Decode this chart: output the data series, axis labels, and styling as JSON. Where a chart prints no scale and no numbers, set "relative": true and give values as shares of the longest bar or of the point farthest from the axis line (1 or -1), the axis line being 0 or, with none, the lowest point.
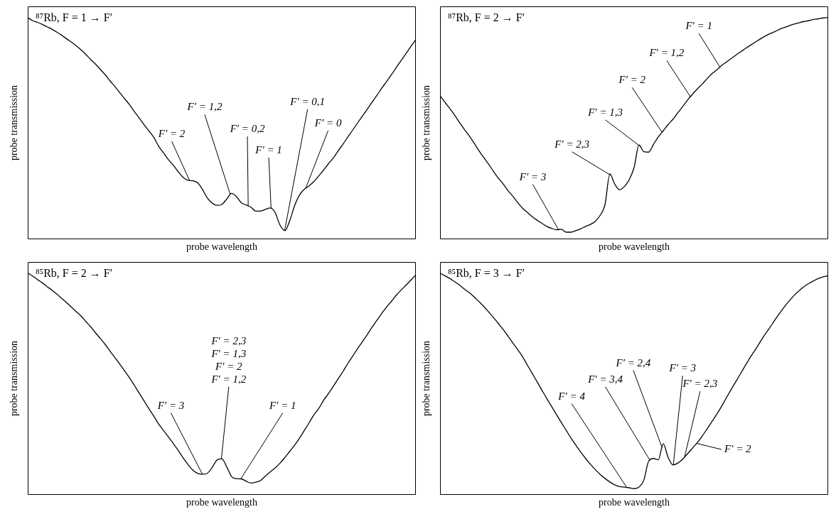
{
  "chart_data": [
    {
      "type": "line",
      "title": "⁸⁷Rb, F = 1 → F′",
      "xlabel": "probe wavelength",
      "ylabel": "probe transmission",
      "relative": true,
      "categories": [
        null,
        null,
        null,
        null,
        null,
        null,
        null,
        null,
        null,
        null,
        null,
        null,
        null,
        null,
        null,
        null,
        null,
        null,
        null,
        null,
        null,
        null,
        null,
        null,
        null,
        null,
        null,
        null,
        null,
        null,
        null,
        null,
        null,
        null,
        null,
        null,
        null,
        null,
        null,
        null,
        null,
        null,
        null,
        null,
        null,
        null,
        null,
        null,
        null,
        null,
        null,
        null,
        null,
        null,
        null,
        null,
        null,
        null,
        null,
        null,
        null,
        null,
        null,
        null,
        null,
        null,
        null,
        null,
        null,
        null,
        null,
        null,
        null,
        null,
        null,
        null,
        null,
        null,
        null,
        null,
        null
      ],
      "series": [
        {
          "color": "#000000",
          "values": [
            1.0,
            0.986,
            0.978,
            0.969,
            0.958,
            0.947,
            0.934,
            0.92,
            0.904,
            0.889,
            0.872,
            0.854,
            0.833,
            0.81,
            0.789,
            0.765,
            0.741,
            0.713,
            0.688,
            0.66,
            0.633,
            0.606,
            0.575,
            0.546,
            0.516,
            0.488,
            0.459,
            0.419,
            0.389,
            0.359,
            0.334,
            0.305,
            0.28,
            0.266,
            0.264,
            0.255,
            0.225,
            0.187,
            0.163,
            0.153,
            0.157,
            0.181,
            0.207,
            0.193,
            0.165,
            0.155,
            0.145,
            0.127,
            0.127,
            0.135,
            0.141,
            0.12,
            0.064,
            0.039,
            0.084,
            0.151,
            0.199,
            0.225,
            0.241,
            0.261,
            0.286,
            0.313,
            0.341,
            0.367,
            0.399,
            0.429,
            0.462,
            0.493,
            0.525,
            0.556,
            0.587,
            0.619,
            0.65,
            0.682,
            0.712,
            0.743,
            0.776,
            0.807,
            0.838,
            0.87,
            0.901
          ]
        }
      ],
      "annotations": [
        "F′ = 2",
        "F′ = 1,2",
        "F′ = 0,2",
        "F′ = 1",
        "F′ = 0,1",
        "F′ = 0"
      ]
    },
    {
      "type": "line",
      "title": "⁸⁷Rb, F = 2 → F′",
      "xlabel": "probe wavelength",
      "ylabel": "probe transmission",
      "relative": true,
      "categories": [
        null,
        null,
        null,
        null,
        null,
        null,
        null,
        null,
        null,
        null,
        null,
        null,
        null,
        null,
        null,
        null,
        null,
        null,
        null,
        null,
        null,
        null,
        null,
        null,
        null,
        null,
        null,
        null,
        null,
        null,
        null,
        null,
        null,
        null,
        null,
        null,
        null,
        null,
        null,
        null,
        null,
        null,
        null,
        null,
        null,
        null,
        null,
        null,
        null,
        null,
        null,
        null,
        null,
        null,
        null,
        null,
        null,
        null,
        null,
        null,
        null,
        null,
        null,
        null,
        null,
        null,
        null,
        null,
        null,
        null,
        null,
        null,
        null,
        null,
        null,
        null,
        null,
        null,
        null,
        null,
        null
      ],
      "series": [
        {
          "color": "#000000",
          "values": [
            0.647,
            0.618,
            0.59,
            0.56,
            0.527,
            0.496,
            0.467,
            0.434,
            0.4,
            0.369,
            0.339,
            0.306,
            0.276,
            0.25,
            0.22,
            0.194,
            0.166,
            0.14,
            0.121,
            0.102,
            0.086,
            0.072,
            0.058,
            0.049,
            0.043,
            0.045,
            0.032,
            0.032,
            0.039,
            0.047,
            0.058,
            0.067,
            0.081,
            0.108,
            0.156,
            0.295,
            0.249,
            0.223,
            0.238,
            0.269,
            0.324,
            0.425,
            0.395,
            0.393,
            0.428,
            0.462,
            0.489,
            0.517,
            0.541,
            0.57,
            0.598,
            0.627,
            0.653,
            0.677,
            0.699,
            0.723,
            0.746,
            0.763,
            0.783,
            0.799,
            0.815,
            0.831,
            0.846,
            0.861,
            0.875,
            0.889,
            0.903,
            0.916,
            0.927,
            0.936,
            0.947,
            0.955,
            0.963,
            0.97,
            0.976,
            0.982,
            0.986,
            0.991,
            0.994,
            0.998,
            1.0
          ]
        }
      ],
      "annotations": [
        "F′ = 3",
        "F′ = 2,3",
        "F′ = 1,3",
        "F′ = 2",
        "F′ = 1,2",
        "F′ = 1"
      ]
    },
    {
      "type": "line",
      "title": "⁸⁵Rb, F = 2 → F′",
      "xlabel": "probe wavelength",
      "ylabel": "probe transmission",
      "relative": true,
      "categories": [
        null,
        null,
        null,
        null,
        null,
        null,
        null,
        null,
        null,
        null,
        null,
        null,
        null,
        null,
        null,
        null,
        null,
        null,
        null,
        null,
        null,
        null,
        null,
        null,
        null,
        null,
        null,
        null,
        null,
        null,
        null,
        null,
        null,
        null,
        null,
        null,
        null,
        null,
        null,
        null,
        null,
        null,
        null,
        null,
        null,
        null,
        null,
        null,
        null,
        null,
        null,
        null,
        null,
        null,
        null,
        null,
        null,
        null,
        null,
        null,
        null,
        null,
        null,
        null,
        null,
        null,
        null,
        null,
        null,
        null,
        null,
        null,
        null,
        null,
        null,
        null,
        null,
        null,
        null,
        null,
        null
      ],
      "series": [
        {
          "color": "#000000",
          "values": [
            1.0,
            0.987,
            0.971,
            0.956,
            0.939,
            0.923,
            0.905,
            0.886,
            0.867,
            0.847,
            0.826,
            0.806,
            0.781,
            0.757,
            0.73,
            0.704,
            0.677,
            0.647,
            0.618,
            0.589,
            0.558,
            0.527,
            0.493,
            0.458,
            0.423,
            0.388,
            0.354,
            0.319,
            0.29,
            0.261,
            0.232,
            0.201,
            0.168,
            0.138,
            0.112,
            0.097,
            0.093,
            0.097,
            0.123,
            0.157,
            0.163,
            0.127,
            0.083,
            0.073,
            0.072,
            0.062,
            0.053,
            0.057,
            0.065,
            0.085,
            0.104,
            0.122,
            0.143,
            0.168,
            0.196,
            0.224,
            0.255,
            0.29,
            0.325,
            0.361,
            0.39,
            0.427,
            0.457,
            0.49,
            0.524,
            0.557,
            0.593,
            0.626,
            0.66,
            0.691,
            0.723,
            0.757,
            0.788,
            0.819,
            0.848,
            0.874,
            0.901,
            0.924,
            0.946,
            0.969,
            0.992
          ]
        }
      ],
      "annotations": [
        "F′ = 3",
        "F′ = 2,3",
        "F′ = 1,3",
        "F′ = 2",
        "F′ = 1,2",
        "F′ = 1"
      ]
    },
    {
      "type": "line",
      "title": "⁸⁵Rb, F = 3 → F′",
      "xlabel": "probe wavelength",
      "ylabel": "probe transmission",
      "relative": true,
      "categories": [
        null,
        null,
        null,
        null,
        null,
        null,
        null,
        null,
        null,
        null,
        null,
        null,
        null,
        null,
        null,
        null,
        null,
        null,
        null,
        null,
        null,
        null,
        null,
        null,
        null,
        null,
        null,
        null,
        null,
        null,
        null,
        null,
        null,
        null,
        null,
        null,
        null,
        null,
        null,
        null,
        null,
        null,
        null,
        null,
        null,
        null,
        null,
        null,
        null,
        null,
        null,
        null,
        null,
        null,
        null,
        null,
        null,
        null,
        null,
        null,
        null,
        null,
        null,
        null,
        null,
        null,
        null,
        null,
        null,
        null,
        null,
        null,
        null,
        null,
        null,
        null,
        null,
        null,
        null,
        null,
        null
      ],
      "series": [
        {
          "color": "#000000",
          "values": [
            1.0,
            0.988,
            0.976,
            0.961,
            0.946,
            0.928,
            0.912,
            0.893,
            0.872,
            0.85,
            0.825,
            0.8,
            0.773,
            0.746,
            0.716,
            0.685,
            0.655,
            0.623,
            0.585,
            0.548,
            0.51,
            0.472,
            0.434,
            0.398,
            0.362,
            0.326,
            0.291,
            0.256,
            0.224,
            0.193,
            0.164,
            0.138,
            0.114,
            0.092,
            0.074,
            0.058,
            0.045,
            0.037,
            0.035,
            0.032,
            0.028,
            0.035,
            0.066,
            0.152,
            0.164,
            0.158,
            0.231,
            0.17,
            0.135,
            0.143,
            0.161,
            0.185,
            0.21,
            0.235,
            0.264,
            0.296,
            0.329,
            0.362,
            0.398,
            0.437,
            0.475,
            0.512,
            0.549,
            0.586,
            0.622,
            0.655,
            0.69,
            0.724,
            0.755,
            0.788,
            0.819,
            0.849,
            0.875,
            0.9,
            0.92,
            0.939,
            0.953,
            0.965,
            0.976,
            0.983,
            0.988
          ]
        }
      ],
      "annotations": [
        "F′ = 4",
        "F′ = 3,4",
        "F′ = 2,4",
        "F′ = 3",
        "F′ = 2,3",
        "F′ = 2"
      ]
    }
  ]
}
